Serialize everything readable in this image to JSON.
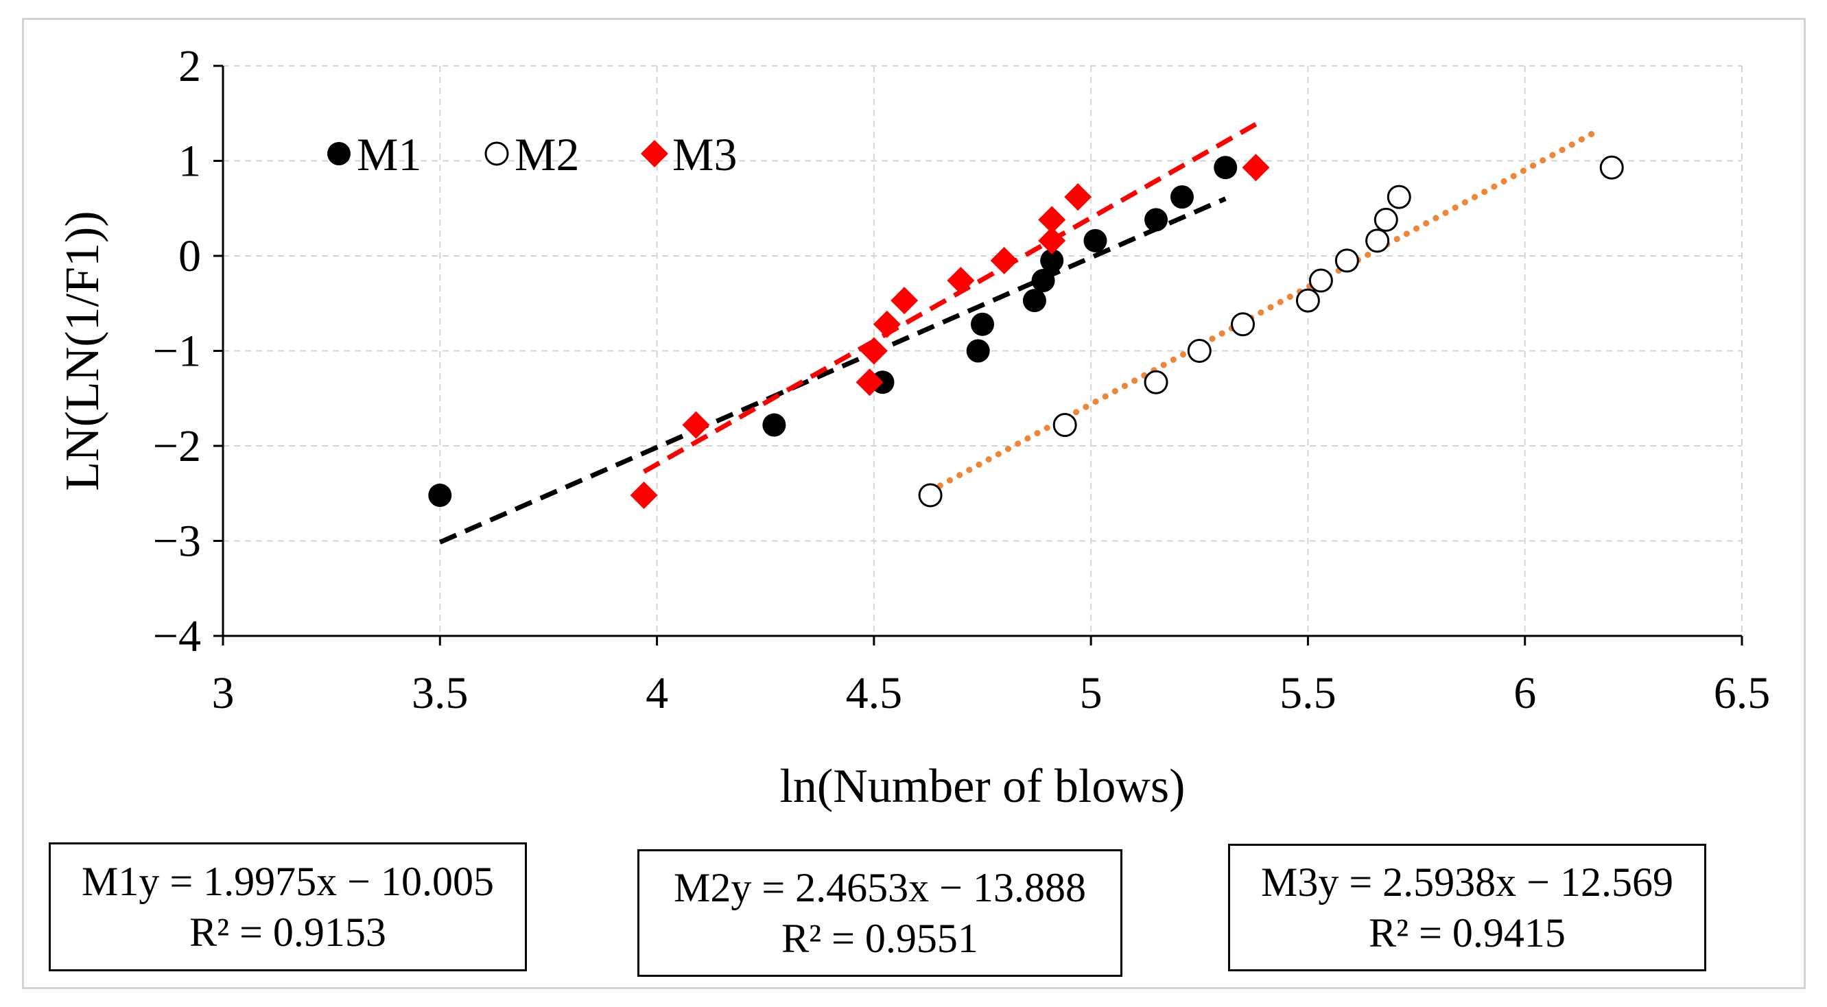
{
  "chart_data": {
    "type": "scatter",
    "title": "",
    "xlabel": "ln(Number of blows)",
    "ylabel": "LN(LN(1/F1))",
    "xlim": [
      3,
      6.5
    ],
    "ylim": [
      -4,
      2
    ],
    "x_ticks": [
      "3",
      "3.5",
      "4",
      "4.5",
      "5",
      "5.5",
      "6",
      "6.5"
    ],
    "y_ticks": [
      "2",
      "1",
      "0",
      "−1",
      "−2",
      "−3",
      "−4"
    ],
    "grid": true,
    "legend_position": "top-left",
    "series": [
      {
        "name": "M1",
        "marker": "filled-circle",
        "color": "#000000",
        "points": [
          [
            3.5,
            -2.52
          ],
          [
            4.27,
            -1.78
          ],
          [
            4.52,
            -1.33
          ],
          [
            4.74,
            -1.0
          ],
          [
            4.75,
            -0.72
          ],
          [
            4.87,
            -0.47
          ],
          [
            4.89,
            -0.26
          ],
          [
            4.91,
            -0.05
          ],
          [
            5.01,
            0.16
          ],
          [
            5.15,
            0.38
          ],
          [
            5.21,
            0.62
          ],
          [
            5.31,
            0.93
          ]
        ],
        "trend": {
          "slope": 1.9975,
          "intercept": -10.005,
          "x_range": [
            3.5,
            5.31
          ],
          "color": "#000000",
          "style": "dashed"
        }
      },
      {
        "name": "M2",
        "marker": "open-circle",
        "color": "#000000",
        "points": [
          [
            4.63,
            -2.52
          ],
          [
            4.94,
            -1.78
          ],
          [
            5.15,
            -1.33
          ],
          [
            5.25,
            -1.0
          ],
          [
            5.35,
            -0.72
          ],
          [
            5.5,
            -0.47
          ],
          [
            5.53,
            -0.26
          ],
          [
            5.59,
            -0.05
          ],
          [
            5.66,
            0.16
          ],
          [
            5.68,
            0.38
          ],
          [
            5.71,
            0.62
          ],
          [
            6.2,
            0.93
          ]
        ],
        "trend": {
          "slope": 2.4653,
          "intercept": -13.888,
          "x_range": [
            4.63,
            6.17
          ],
          "color": "#f08536",
          "style": "dotted"
        }
      },
      {
        "name": "M3",
        "marker": "filled-diamond",
        "color": "#ff0000",
        "points": [
          [
            3.97,
            -2.52
          ],
          [
            4.09,
            -1.78
          ],
          [
            4.49,
            -1.33
          ],
          [
            4.5,
            -1.0
          ],
          [
            4.53,
            -0.72
          ],
          [
            4.57,
            -0.47
          ],
          [
            4.7,
            -0.26
          ],
          [
            4.8,
            -0.05
          ],
          [
            4.91,
            0.16
          ],
          [
            4.91,
            0.38
          ],
          [
            4.97,
            0.62
          ],
          [
            5.38,
            0.93
          ]
        ],
        "trend": {
          "slope": 2.5938,
          "intercept": -12.569,
          "x_range": [
            3.97,
            5.38
          ],
          "color": "#ff0000",
          "style": "dashed"
        }
      }
    ]
  },
  "equations": [
    {
      "line1": "M1y = 1.9975x − 10.005",
      "line2": "R² = 0.9153"
    },
    {
      "line1": "M2y = 2.4653x − 13.888",
      "line2": "R² = 0.9551"
    },
    {
      "line1": "M3y = 2.5938x − 12.569",
      "line2": "R² = 0.9415"
    }
  ]
}
